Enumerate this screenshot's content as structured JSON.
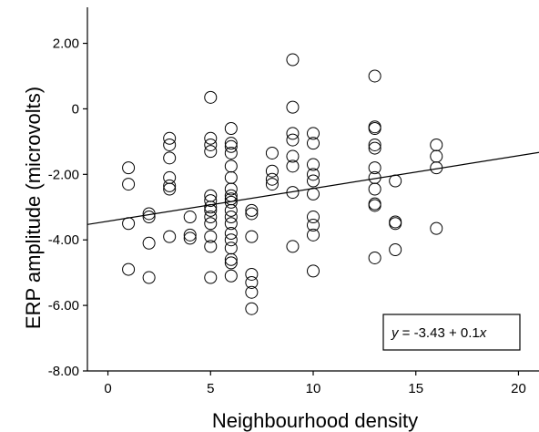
{
  "chart_data": {
    "type": "scatter",
    "title": "",
    "xlabel": "Neighbourhood density",
    "ylabel": "ERP amplitude (microvolts)",
    "xlim": [
      -1,
      21
    ],
    "ylim": [
      -8,
      3.1
    ],
    "xticks": [
      0,
      5,
      10,
      15,
      20
    ],
    "xtick_labels": [
      "0",
      "5",
      "10",
      "15",
      "20"
    ],
    "yticks": [
      2,
      0,
      -2,
      -4,
      -6,
      -8
    ],
    "ytick_labels": [
      "2.00",
      "0",
      "-2.00",
      "-4.00",
      "-6.00",
      "-8.00"
    ],
    "grid": false,
    "regression": {
      "intercept": -3.43,
      "slope": 0.1,
      "label_prefix": "y",
      "label_body": " = -3.43 + 0.1",
      "label_var": "x"
    },
    "points": [
      [
        1,
        -1.8
      ],
      [
        1,
        -2.3
      ],
      [
        1,
        -3.5
      ],
      [
        1,
        -4.9
      ],
      [
        2,
        -3.2
      ],
      [
        2,
        -3.3
      ],
      [
        2,
        -4.1
      ],
      [
        2,
        -5.15
      ],
      [
        3,
        -0.9
      ],
      [
        3,
        -1.1
      ],
      [
        3,
        -1.5
      ],
      [
        3,
        -2.1
      ],
      [
        3,
        -2.35
      ],
      [
        3,
        -2.45
      ],
      [
        3,
        -3.9
      ],
      [
        4,
        -3.3
      ],
      [
        4,
        -3.85
      ],
      [
        4,
        -3.95
      ],
      [
        5,
        0.35
      ],
      [
        5,
        -0.9
      ],
      [
        5,
        -1.1
      ],
      [
        5,
        -1.3
      ],
      [
        5,
        -2.65
      ],
      [
        5,
        -2.8
      ],
      [
        5,
        -3.0
      ],
      [
        5,
        -3.1
      ],
      [
        5,
        -3.3
      ],
      [
        5,
        -3.5
      ],
      [
        5,
        -3.9
      ],
      [
        5,
        -4.2
      ],
      [
        5,
        -5.15
      ],
      [
        6,
        -0.6
      ],
      [
        6,
        -1.05
      ],
      [
        6,
        -1.15
      ],
      [
        6,
        -1.35
      ],
      [
        6,
        -1.75
      ],
      [
        6,
        -2.1
      ],
      [
        6,
        -2.45
      ],
      [
        6,
        -2.65
      ],
      [
        6,
        -2.75
      ],
      [
        6,
        -2.85
      ],
      [
        6,
        -3.1
      ],
      [
        6,
        -3.3
      ],
      [
        6,
        -3.5
      ],
      [
        6,
        -3.8
      ],
      [
        6,
        -4.0
      ],
      [
        6,
        -4.25
      ],
      [
        6,
        -4.6
      ],
      [
        6,
        -4.7
      ],
      [
        6,
        -5.1
      ],
      [
        7,
        -3.1
      ],
      [
        7,
        -3.2
      ],
      [
        7,
        -3.9
      ],
      [
        7,
        -5.05
      ],
      [
        7,
        -5.3
      ],
      [
        7,
        -5.6
      ],
      [
        7,
        -6.1
      ],
      [
        8,
        -1.35
      ],
      [
        8,
        -1.9
      ],
      [
        8,
        -2.15
      ],
      [
        8,
        -2.3
      ],
      [
        9,
        1.5
      ],
      [
        9,
        0.05
      ],
      [
        9,
        -0.75
      ],
      [
        9,
        -0.95
      ],
      [
        9,
        -1.45
      ],
      [
        9,
        -1.75
      ],
      [
        9,
        -2.55
      ],
      [
        9,
        -4.2
      ],
      [
        10,
        -0.75
      ],
      [
        10,
        -1.05
      ],
      [
        10,
        -1.7
      ],
      [
        10,
        -2.0
      ],
      [
        10,
        -2.2
      ],
      [
        10,
        -2.6
      ],
      [
        10,
        -3.3
      ],
      [
        10,
        -3.55
      ],
      [
        10,
        -3.85
      ],
      [
        10,
        -4.95
      ],
      [
        13,
        1.0
      ],
      [
        13,
        -0.55
      ],
      [
        13,
        -0.6
      ],
      [
        13,
        -1.1
      ],
      [
        13,
        -1.2
      ],
      [
        13,
        -1.8
      ],
      [
        13,
        -2.1
      ],
      [
        13,
        -2.45
      ],
      [
        13,
        -2.9
      ],
      [
        13,
        -2.95
      ],
      [
        13,
        -4.55
      ],
      [
        14,
        -2.2
      ],
      [
        14,
        -3.45
      ],
      [
        14,
        -3.5
      ],
      [
        14,
        -4.3
      ],
      [
        16,
        -1.1
      ],
      [
        16,
        -1.45
      ],
      [
        16,
        -1.8
      ],
      [
        16,
        -3.65
      ]
    ]
  }
}
